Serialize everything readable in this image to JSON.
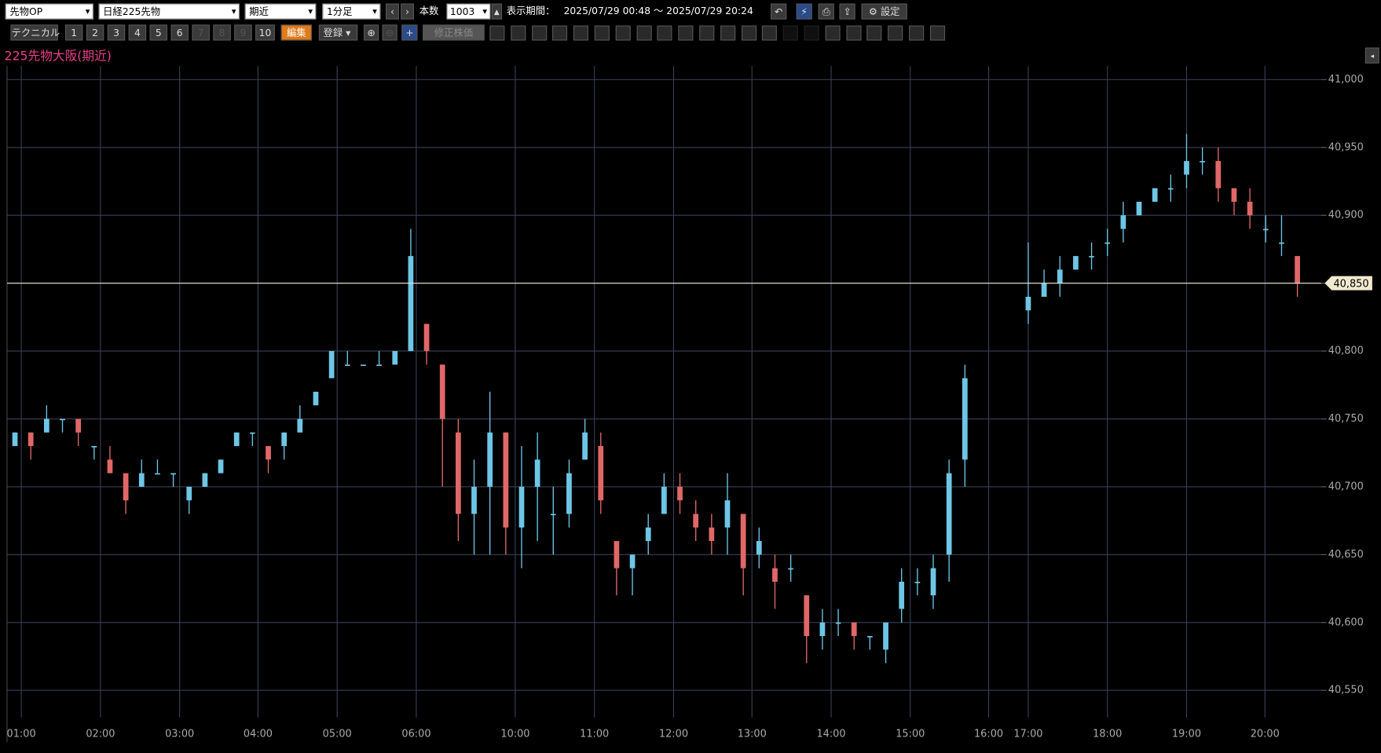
{
  "toolbar": {
    "market": "先物OP",
    "symbol": "日経225先物",
    "contract": "期近",
    "interval": "1分足",
    "count_label": "本数",
    "count": "1003",
    "period_label": "表示期間：",
    "period": "2025/07/29 00:48 ～ 2025/07/29 20:24",
    "settings": "設定",
    "technical": "テクニカル",
    "buttons": [
      "1",
      "2",
      "3",
      "4",
      "5",
      "6",
      "7",
      "8",
      "9",
      "10"
    ],
    "edit": "編集",
    "register": "登録",
    "adjusted": "修正株価"
  },
  "chart_data": {
    "type": "candlestick",
    "title": "225先物大阪(期近)",
    "up_color": "#6ec6e6",
    "down_color": "#e06868",
    "grid": true,
    "xlim": [
      0,
      166
    ],
    "ylim": [
      40530,
      41010
    ],
    "xticks": [
      {
        "value": 1.8,
        "label": "01:00"
      },
      {
        "value": 11.8,
        "label": "02:00"
      },
      {
        "value": 21.8,
        "label": "03:00"
      },
      {
        "value": 31.7,
        "label": "04:00"
      },
      {
        "value": 41.7,
        "label": "05:00"
      },
      {
        "value": 51.7,
        "label": "06:00"
      },
      {
        "value": 64.2,
        "label": "10:00"
      },
      {
        "value": 74.2,
        "label": "11:00"
      },
      {
        "value": 84.2,
        "label": "12:00"
      },
      {
        "value": 94.1,
        "label": "13:00"
      },
      {
        "value": 104.1,
        "label": "14:00"
      },
      {
        "value": 114.1,
        "label": "15:00"
      },
      {
        "value": 124,
        "label": "16:00"
      },
      {
        "value": 129,
        "label": "17:00"
      },
      {
        "value": 139,
        "label": "18:00"
      },
      {
        "value": 149,
        "label": "19:00"
      },
      {
        "value": 158.9,
        "label": "20:00"
      }
    ],
    "yticks": [
      {
        "value": 40550,
        "label": "40,550"
      },
      {
        "value": 40600,
        "label": "40,600"
      },
      {
        "value": 40650,
        "label": "40,650"
      },
      {
        "value": 40700,
        "label": "40,700"
      },
      {
        "value": 40750,
        "label": "40,750"
      },
      {
        "value": 40800,
        "label": "40,800"
      },
      {
        "value": 40850,
        "label": "40,850"
      },
      {
        "value": 40900,
        "label": "40,900"
      },
      {
        "value": 40950,
        "label": "40,950"
      },
      {
        "value": 41000,
        "label": "41,000"
      }
    ],
    "last_price": {
      "value": 40850,
      "label": "40,850"
    },
    "x": [
      1,
      3,
      5,
      7,
      9,
      11,
      13,
      15,
      17,
      19,
      21,
      23,
      25,
      27,
      29,
      31,
      33,
      35,
      37,
      39,
      41,
      43,
      45,
      47,
      49,
      51,
      53,
      55,
      57,
      59,
      61,
      63,
      65,
      67,
      69,
      71,
      73,
      75,
      77,
      79,
      81,
      83,
      85,
      87,
      89,
      91,
      93,
      95,
      97,
      99,
      101,
      103,
      105,
      107,
      109,
      111,
      113,
      115,
      117,
      119,
      121,
      129,
      131,
      133,
      135,
      137,
      139,
      141,
      143,
      145,
      147,
      149,
      151,
      153,
      155,
      157,
      159,
      161,
      163
    ],
    "open": [
      40730,
      40740,
      40740,
      40750,
      40750,
      40730,
      40720,
      40710,
      40700,
      40710,
      40710,
      40690,
      40700,
      40710,
      40730,
      40740,
      40730,
      40730,
      40740,
      40760,
      40780,
      40790,
      40790,
      40790,
      40790,
      40800,
      40820,
      40790,
      40740,
      40680,
      40700,
      40740,
      40670,
      40700,
      40680,
      40680,
      40720,
      40730,
      40660,
      40640,
      40660,
      40680,
      40700,
      40680,
      40670,
      40670,
      40680,
      40650,
      40640,
      40640,
      40620,
      40590,
      40600,
      40600,
      40590,
      40580,
      40610,
      40630,
      40620,
      40650,
      40720,
      40830,
      40840,
      40850,
      40860,
      40870,
      40880,
      40890,
      40900,
      40910,
      40920,
      40930,
      40940,
      40940,
      40920,
      40910,
      40890,
      40880,
      40870
    ],
    "high": [
      40740,
      40740,
      40760,
      40750,
      40750,
      40730,
      40730,
      40710,
      40720,
      40720,
      40710,
      40700,
      40710,
      40720,
      40740,
      40740,
      40730,
      40740,
      40760,
      40770,
      40800,
      40800,
      40790,
      40800,
      40800,
      40890,
      40820,
      40790,
      40750,
      40720,
      40770,
      40740,
      40730,
      40740,
      40700,
      40720,
      40750,
      40740,
      40660,
      40650,
      40680,
      40710,
      40710,
      40690,
      40680,
      40710,
      40680,
      40670,
      40650,
      40650,
      40620,
      40610,
      40610,
      40600,
      40590,
      40600,
      40640,
      40640,
      40650,
      40720,
      40790,
      40880,
      40860,
      40870,
      40870,
      40880,
      40890,
      40910,
      40910,
      40920,
      40930,
      40960,
      40950,
      40950,
      40920,
      40920,
      40900,
      40900,
      40870
    ],
    "low": [
      40730,
      40720,
      40740,
      40740,
      40730,
      40720,
      40710,
      40680,
      40700,
      40710,
      40700,
      40680,
      40700,
      40710,
      40730,
      40730,
      40710,
      40720,
      40740,
      40760,
      40780,
      40790,
      40790,
      40790,
      40790,
      40800,
      40790,
      40700,
      40660,
      40650,
      40650,
      40650,
      40640,
      40660,
      40650,
      40670,
      40720,
      40680,
      40620,
      40620,
      40650,
      40680,
      40680,
      40660,
      40650,
      40650,
      40620,
      40640,
      40610,
      40630,
      40570,
      40580,
      40590,
      40580,
      40580,
      40570,
      40600,
      40620,
      40610,
      40630,
      40700,
      40820,
      40840,
      40840,
      40860,
      40860,
      40870,
      40880,
      40900,
      40910,
      40910,
      40920,
      40930,
      40910,
      40900,
      40890,
      40880,
      40870,
      40840
    ],
    "close": [
      40740,
      40730,
      40750,
      40750,
      40740,
      40730,
      40710,
      40690,
      40710,
      40710,
      40710,
      40700,
      40710,
      40720,
      40740,
      40740,
      40720,
      40740,
      40750,
      40770,
      40800,
      40790,
      40790,
      40790,
      40800,
      40870,
      40800,
      40750,
      40680,
      40700,
      40740,
      40670,
      40700,
      40720,
      40680,
      40710,
      40740,
      40690,
      40640,
      40650,
      40670,
      40700,
      40690,
      40670,
      40660,
      40690,
      40640,
      40660,
      40630,
      40640,
      40590,
      40600,
      40600,
      40590,
      40590,
      40600,
      40630,
      40630,
      40640,
      40710,
      40780,
      40840,
      40850,
      40860,
      40870,
      40870,
      40880,
      40900,
      40910,
      40920,
      40920,
      40940,
      40940,
      40920,
      40910,
      40900,
      40890,
      40880,
      40850
    ]
  }
}
